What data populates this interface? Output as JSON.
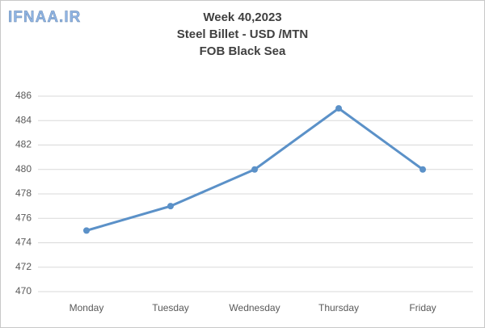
{
  "chart_data": {
    "type": "line",
    "watermark": "IFNAA.IR",
    "title": [
      "Week 40,2023",
      "Steel Billet - USD /MTN",
      "FOB Black Sea"
    ],
    "categories": [
      "Monday",
      "Tuesday",
      "Wednesday",
      "Thursday",
      "Friday"
    ],
    "series": [
      {
        "name": "Steel Billet",
        "color": "#5b91c8",
        "values": [
          475,
          477,
          480,
          485,
          480
        ]
      }
    ],
    "ylim": [
      470,
      486
    ],
    "yticks": [
      470,
      472,
      474,
      476,
      478,
      480,
      482,
      484,
      486
    ],
    "grid": true
  }
}
